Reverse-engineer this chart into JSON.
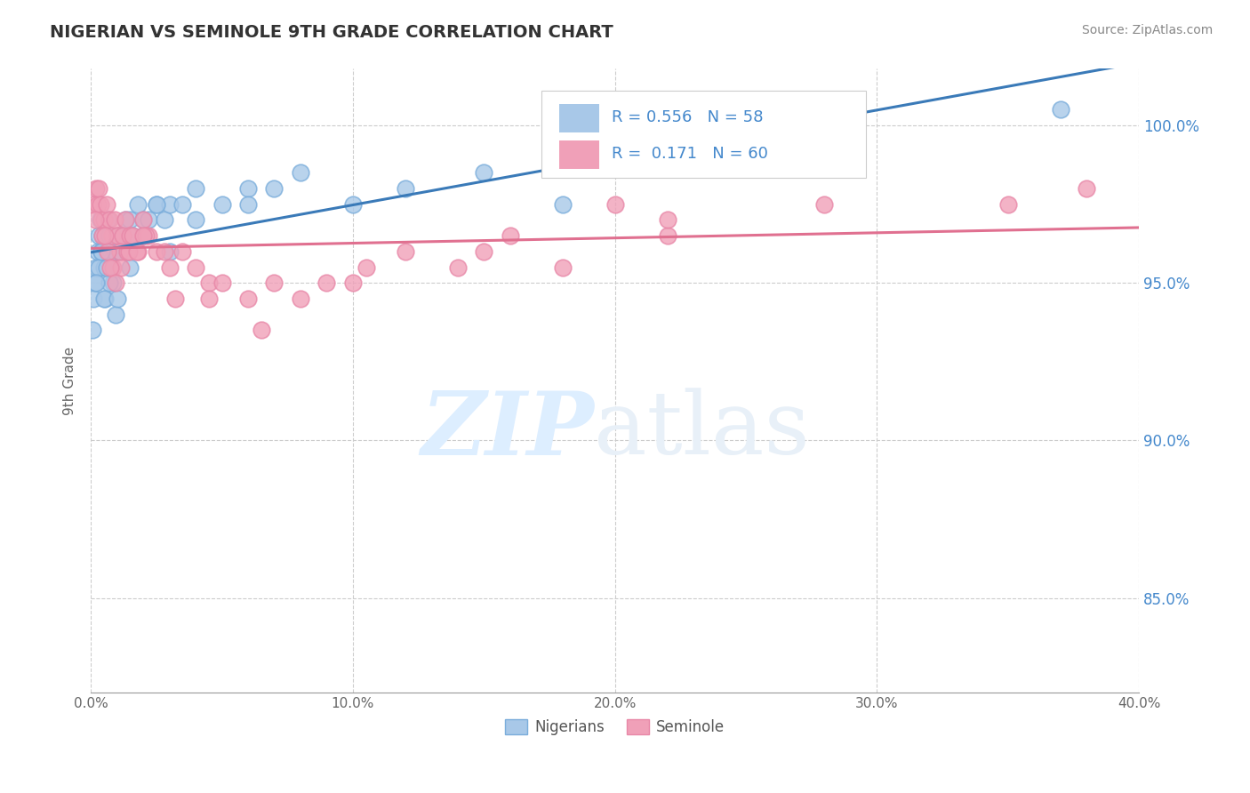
{
  "title": "NIGERIAN VS SEMINOLE 9TH GRADE CORRELATION CHART",
  "source": "Source: ZipAtlas.com",
  "xlabel_vals": [
    0.0,
    10.0,
    20.0,
    30.0,
    40.0
  ],
  "ylabel_vals": [
    85.0,
    90.0,
    95.0,
    100.0
  ],
  "xmin": 0.0,
  "xmax": 40.0,
  "ymin": 82.0,
  "ymax": 101.8,
  "R_blue": 0.556,
  "N_blue": 58,
  "R_pink": 0.171,
  "N_pink": 60,
  "blue_color": "#a8c8e8",
  "pink_color": "#f0a0b8",
  "blue_edge_color": "#7aaddb",
  "pink_edge_color": "#e888a8",
  "blue_line_color": "#3a7ab8",
  "pink_line_color": "#e07090",
  "ytick_color": "#4488cc",
  "watermark_zip": "ZIP",
  "watermark_atlas": "atlas",
  "watermark_color": "#ddeeff",
  "blue_dots_x": [
    0.05,
    0.1,
    0.15,
    0.2,
    0.25,
    0.3,
    0.35,
    0.4,
    0.45,
    0.5,
    0.55,
    0.6,
    0.65,
    0.7,
    0.75,
    0.8,
    0.85,
    0.9,
    0.95,
    1.0,
    1.1,
    1.2,
    1.3,
    1.4,
    1.5,
    1.6,
    1.8,
    2.0,
    2.2,
    2.5,
    2.8,
    3.0,
    3.5,
    4.0,
    5.0,
    6.0,
    7.0,
    8.0,
    10.0,
    12.0,
    15.0,
    18.0,
    0.3,
    0.5,
    0.7,
    1.0,
    1.5,
    2.0,
    3.0,
    0.2,
    0.4,
    0.6,
    0.8,
    1.2,
    2.5,
    4.0,
    6.0,
    37.0
  ],
  "blue_dots_y": [
    93.5,
    94.5,
    95.0,
    95.5,
    96.0,
    96.5,
    97.0,
    96.0,
    96.5,
    95.5,
    94.5,
    96.0,
    97.0,
    96.5,
    96.0,
    95.5,
    95.0,
    96.0,
    94.0,
    96.5,
    96.0,
    96.5,
    97.0,
    96.0,
    97.0,
    96.5,
    97.5,
    97.0,
    97.0,
    97.5,
    97.0,
    97.5,
    97.5,
    98.0,
    97.5,
    98.0,
    98.0,
    98.5,
    97.5,
    98.0,
    98.5,
    97.5,
    95.5,
    94.5,
    95.0,
    94.5,
    95.5,
    96.5,
    96.0,
    95.0,
    96.0,
    95.5,
    96.5,
    96.5,
    97.5,
    97.0,
    97.5,
    100.5
  ],
  "pink_dots_x": [
    0.1,
    0.2,
    0.25,
    0.3,
    0.35,
    0.4,
    0.5,
    0.6,
    0.7,
    0.8,
    0.9,
    1.0,
    1.1,
    1.2,
    1.3,
    1.4,
    1.5,
    1.6,
    1.8,
    2.0,
    2.2,
    2.5,
    2.8,
    3.0,
    3.5,
    4.0,
    4.5,
    5.0,
    6.0,
    7.0,
    8.0,
    9.0,
    10.0,
    12.0,
    14.0,
    16.0,
    18.0,
    20.0,
    22.0,
    0.45,
    0.65,
    0.85,
    1.15,
    1.45,
    1.75,
    2.1,
    3.2,
    0.15,
    0.55,
    0.75,
    0.95,
    2.0,
    4.5,
    6.5,
    10.5,
    15.0,
    22.0,
    28.0,
    35.0,
    38.0
  ],
  "pink_dots_y": [
    97.5,
    98.0,
    97.5,
    98.0,
    97.5,
    97.0,
    97.0,
    97.5,
    97.0,
    96.5,
    97.0,
    96.5,
    96.0,
    96.5,
    97.0,
    96.0,
    96.5,
    96.5,
    96.0,
    97.0,
    96.5,
    96.0,
    96.0,
    95.5,
    96.0,
    95.5,
    95.0,
    95.0,
    94.5,
    95.0,
    94.5,
    95.0,
    95.0,
    96.0,
    95.5,
    96.5,
    95.5,
    97.5,
    96.5,
    96.5,
    96.0,
    95.5,
    95.5,
    96.0,
    96.0,
    96.5,
    94.5,
    97.0,
    96.5,
    95.5,
    95.0,
    96.5,
    94.5,
    93.5,
    95.5,
    96.0,
    97.0,
    97.5,
    97.5,
    98.0
  ]
}
